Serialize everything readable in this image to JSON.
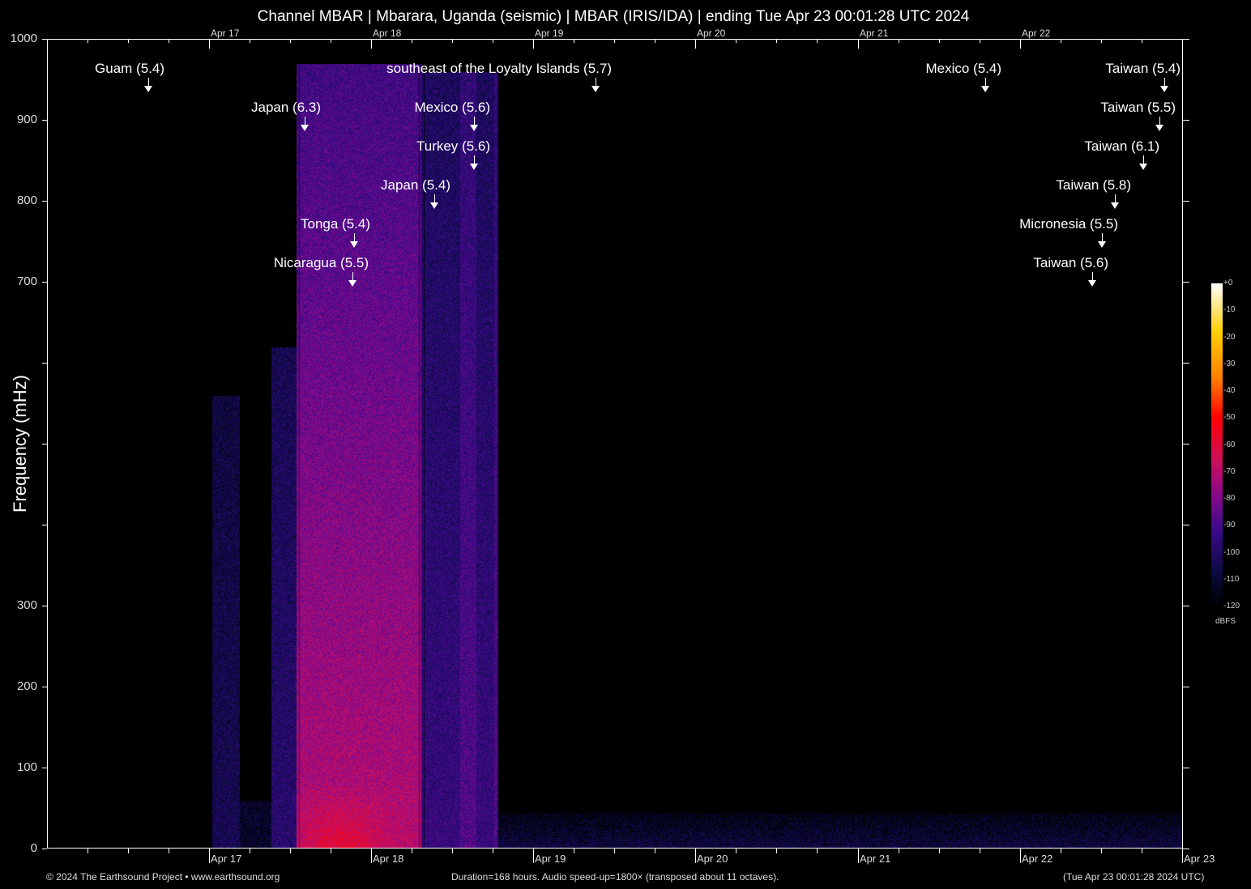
{
  "title": "Channel MBAR | Mbarara, Uganda (seismic) | MBAR (IRIS/IDA) | ending Tue Apr 23 00:01:28 UTC 2024",
  "chart_data": {
    "type": "heatmap",
    "title": "Channel MBAR | Mbarara, Uganda (seismic) | MBAR (IRIS/IDA) | ending Tue Apr 23 00:01:28 UTC 2024",
    "xlabel": "",
    "ylabel": "Frequency (mHz)",
    "x_range": [
      "2024-04-16T00:01:28Z",
      "2024-04-23T00:01:28Z"
    ],
    "ylim": [
      0,
      1000
    ],
    "x_tick_labels": [
      "Apr 17",
      "Apr 18",
      "Apr 19",
      "Apr 20",
      "Apr 21",
      "Apr 22",
      "Apr 23"
    ],
    "y_tick_labels": [
      "0",
      "100",
      "200",
      "300",
      "700",
      "800",
      "900",
      "1000"
    ],
    "colorbar": {
      "label": "dBFS",
      "range": [
        -120,
        0
      ],
      "tick_labels": [
        "+0",
        "-10",
        "-20",
        "-30",
        "-40",
        "-50",
        "-60",
        "-70",
        "-80",
        "-90",
        "-100",
        "-110",
        "-120"
      ]
    },
    "colormap": [
      "#000000",
      "#0a0a40",
      "#3a0a8a",
      "#8a0a8a",
      "#d0105a",
      "#ff0000",
      "#ff8000",
      "#ffd000",
      "#ffffff"
    ],
    "events": [
      {
        "label": "Guam (5.4)",
        "time": "2024-04-16T15:00Z"
      },
      {
        "label": "Japan (6.3)",
        "time": "2024-04-17T14:10Z"
      },
      {
        "label": "southeast of the Loyalty Islands (5.7)",
        "time": "2024-04-19T09:15Z"
      },
      {
        "label": "Mexico (5.6)",
        "time": "2024-04-18T15:10Z"
      },
      {
        "label": "Turkey (5.6)",
        "time": "2024-04-18T15:10Z"
      },
      {
        "label": "Japan (5.4)",
        "time": "2024-04-18T09:20Z"
      },
      {
        "label": "Tonga (5.4)",
        "time": "2024-04-17T21:30Z"
      },
      {
        "label": "Nicaragua (5.5)",
        "time": "2024-04-17T21:15Z"
      },
      {
        "label": "Mexico (5.4)",
        "time": "2024-04-21T18:50Z"
      },
      {
        "label": "Taiwan (5.4)",
        "time": "2024-04-22T21:20Z"
      },
      {
        "label": "Taiwan (5.5)",
        "time": "2024-04-22T20:40Z"
      },
      {
        "label": "Taiwan (6.1)",
        "time": "2024-04-22T18:15Z"
      },
      {
        "label": "Taiwan (5.8)",
        "time": "2024-04-22T14:05Z"
      },
      {
        "label": "Micronesia (5.5)",
        "time": "2024-04-22T12:10Z"
      },
      {
        "label": "Taiwan (5.6)",
        "time": "2024-04-22T10:40Z"
      }
    ]
  },
  "footer": {
    "copyright": "© 2024 The Earthsound Project • www.earthsound.org",
    "info": "Duration=168 hours. Audio speed-up=1800× (transposed about 11 octaves).",
    "timestamp": "(Tue Apr 23 00:01:28 2024 UTC)"
  }
}
